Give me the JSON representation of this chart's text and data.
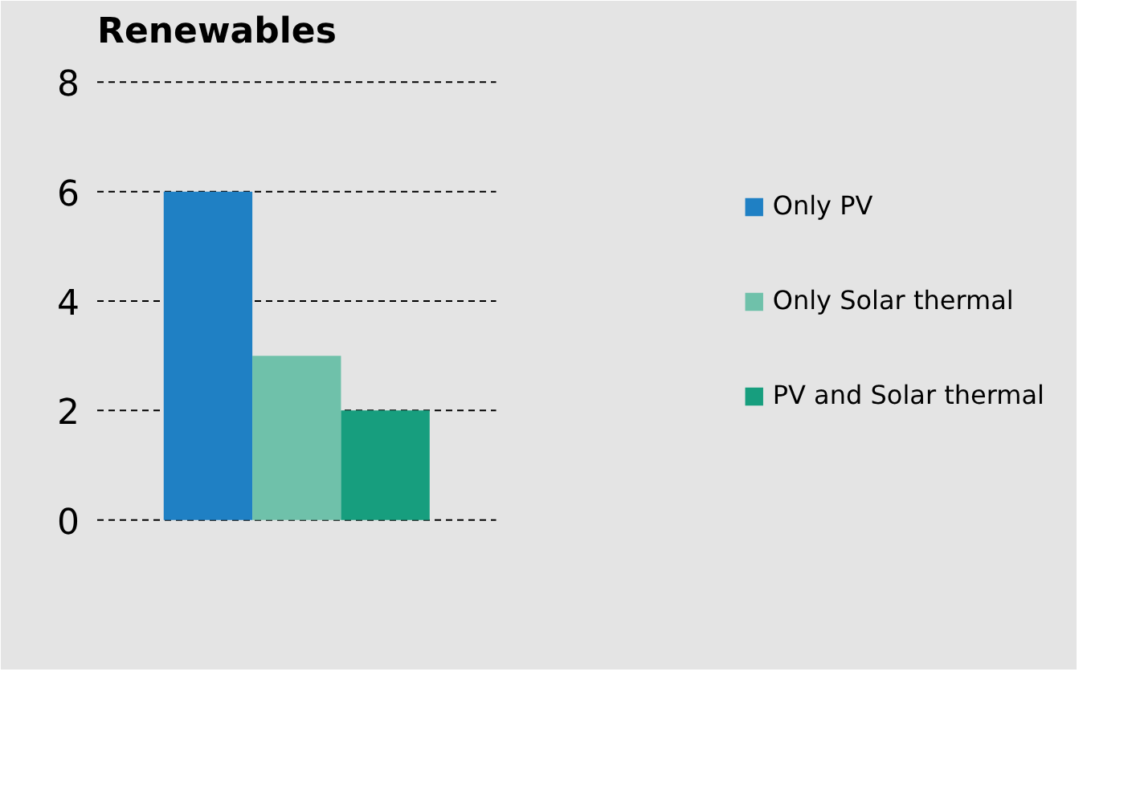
{
  "chart_data": {
    "type": "bar",
    "title": "Renewables",
    "categories": [
      null
    ],
    "series": [
      {
        "name": "Only PV",
        "color": "#1f80c4",
        "values": [
          6
        ]
      },
      {
        "name": "Only Solar thermal",
        "color": "#6fc1aa",
        "values": [
          3
        ]
      },
      {
        "name": "PV and Solar thermal",
        "color": "#179e7e",
        "values": [
          2
        ]
      }
    ],
    "ylim": [
      -0.4,
      8.4
    ],
    "yticks": [
      0,
      2,
      4,
      6,
      8
    ],
    "grid": "y",
    "legend": "right"
  }
}
